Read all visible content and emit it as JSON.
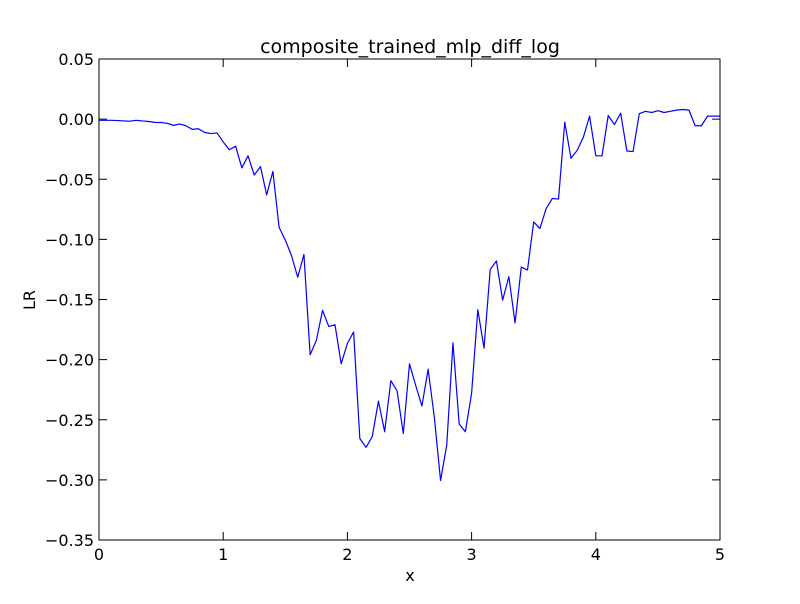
{
  "chart_data": {
    "type": "line",
    "title": "composite_trained_mlp_diff_log",
    "xlabel": "x",
    "ylabel": "LR",
    "xlim": [
      0,
      5
    ],
    "ylim": [
      -0.35,
      0.05
    ],
    "x_ticks": [
      0,
      1,
      2,
      3,
      4,
      5
    ],
    "x_tick_labels": [
      "0",
      "1",
      "2",
      "3",
      "4",
      "5"
    ],
    "y_ticks": [
      0.05,
      0.0,
      -0.05,
      -0.1,
      -0.15,
      -0.2,
      -0.25,
      -0.3,
      -0.35
    ],
    "y_tick_labels": [
      "0.05",
      "0.00",
      "−0.05",
      "−0.10",
      "−0.15",
      "−0.20",
      "−0.25",
      "−0.30",
      "−0.35"
    ],
    "grid": false,
    "legend": "none",
    "series": [
      {
        "color": "#0000ff",
        "x": [
          0,
          0.05,
          0.1,
          0.15,
          0.2,
          0.25,
          0.3,
          0.35,
          0.4,
          0.45,
          0.5,
          0.55,
          0.6,
          0.65,
          0.7,
          0.75,
          0.8,
          0.85,
          0.9,
          0.95,
          1.0,
          1.05,
          1.1,
          1.15,
          1.2,
          1.25,
          1.3,
          1.35,
          1.4,
          1.45,
          1.5,
          1.55,
          1.6,
          1.65,
          1.7,
          1.75,
          1.8,
          1.85,
          1.9,
          1.95,
          2.0,
          2.05,
          2.1,
          2.15,
          2.2,
          2.25,
          2.3,
          2.35,
          2.4,
          2.45,
          2.5,
          2.55,
          2.6,
          2.65,
          2.7,
          2.75,
          2.8,
          2.85,
          2.9,
          2.95,
          3.0,
          3.05,
          3.1,
          3.15,
          3.2,
          3.25,
          3.3,
          3.35,
          3.4,
          3.45,
          3.5,
          3.55,
          3.6,
          3.65,
          3.7,
          3.75,
          3.8,
          3.85,
          3.9,
          3.95,
          4.0,
          4.05,
          4.1,
          4.15,
          4.2,
          4.25,
          4.3,
          4.35,
          4.4,
          4.45,
          4.5,
          4.55,
          4.6,
          4.65,
          4.7,
          4.75,
          4.8,
          4.85,
          4.9,
          4.95,
          5.0
        ],
        "y": [
          -0.001,
          -0.001,
          -0.001,
          -0.0012,
          -0.0015,
          -0.0017,
          -0.001,
          -0.0015,
          -0.002,
          -0.0027,
          -0.0028,
          -0.0035,
          -0.0052,
          -0.004,
          -0.0055,
          -0.0085,
          -0.008,
          -0.011,
          -0.012,
          -0.0115,
          -0.019,
          -0.0255,
          -0.0225,
          -0.0405,
          -0.0305,
          -0.0465,
          -0.0395,
          -0.063,
          -0.0435,
          -0.09,
          -0.1005,
          -0.1135,
          -0.1315,
          -0.1125,
          -0.196,
          -0.184,
          -0.159,
          -0.1725,
          -0.171,
          -0.2035,
          -0.1865,
          -0.177,
          -0.2655,
          -0.273,
          -0.264,
          -0.2345,
          -0.26,
          -0.2175,
          -0.226,
          -0.2615,
          -0.2035,
          -0.2215,
          -0.2385,
          -0.208,
          -0.248,
          -0.3005,
          -0.271,
          -0.186,
          -0.2535,
          -0.26,
          -0.228,
          -0.1585,
          -0.1905,
          -0.125,
          -0.118,
          -0.1505,
          -0.131,
          -0.1695,
          -0.123,
          -0.1255,
          -0.0855,
          -0.091,
          -0.0745,
          -0.066,
          -0.0665,
          -0.0025,
          -0.0325,
          -0.026,
          -0.015,
          0.0025,
          -0.0305,
          -0.0305,
          0.003,
          -0.0045,
          0.005,
          -0.0265,
          -0.027,
          0.0045,
          0.0065,
          0.0055,
          0.007,
          0.0055,
          0.0065,
          0.0075,
          0.008,
          0.0075,
          -0.0055,
          -0.0055,
          0.0025,
          0.0025,
          0.0025
        ]
      }
    ]
  }
}
